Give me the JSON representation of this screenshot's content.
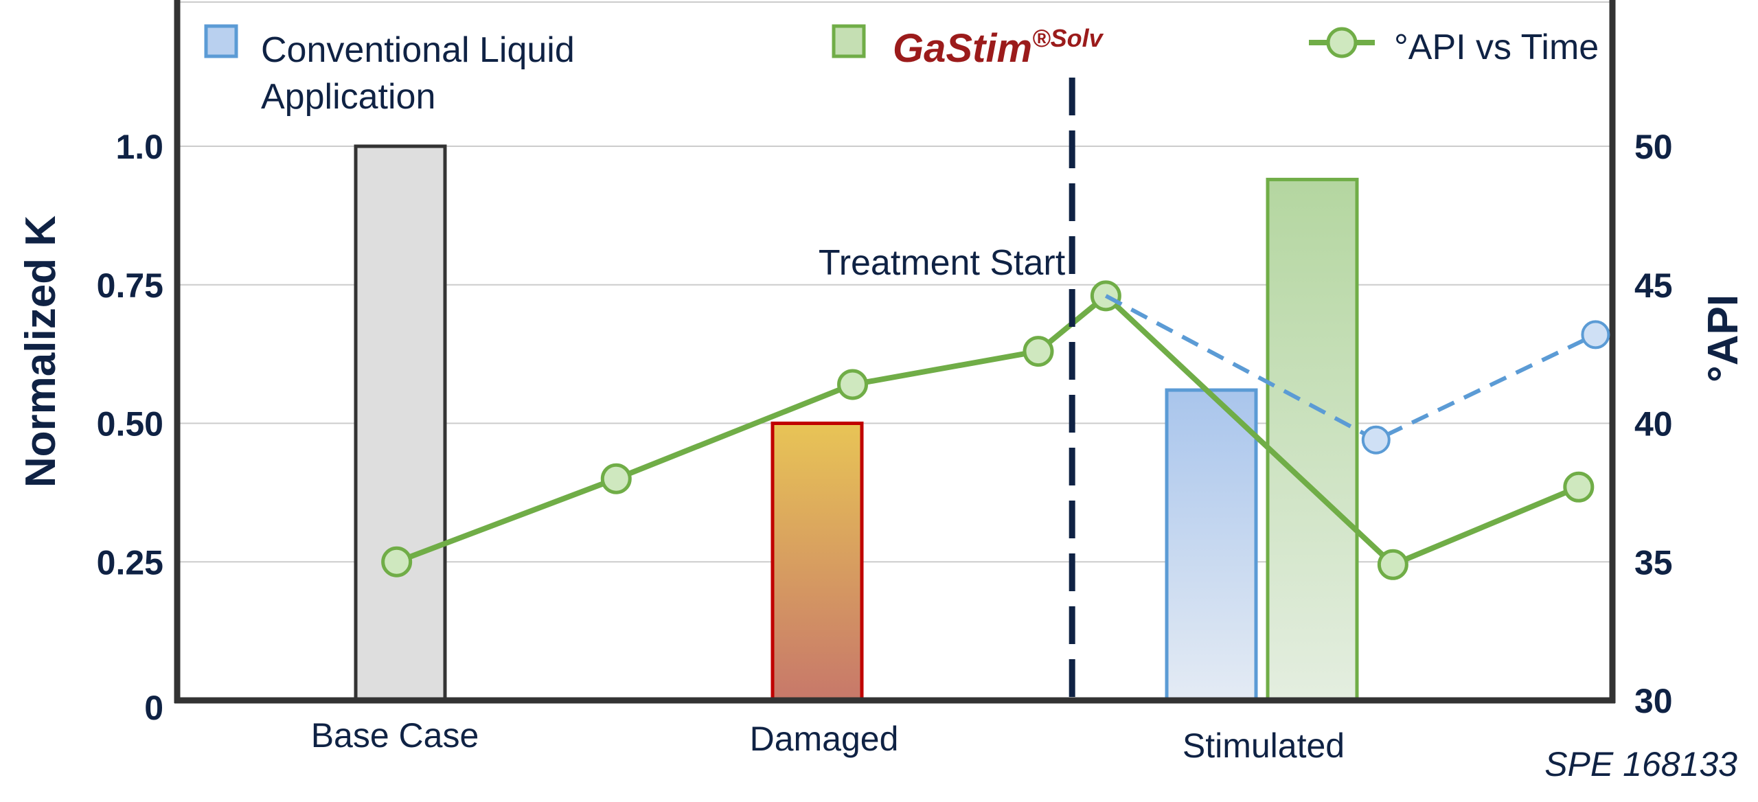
{
  "chart_data": {
    "type": "bar",
    "categories": [
      "Base Case",
      "Damaged",
      "Stimulated"
    ],
    "ylabel": "Normalized  K",
    "y2label": "°API",
    "ylim": [
      0,
      1.0
    ],
    "y2lim": [
      30,
      50
    ],
    "yticks": [
      "0",
      "0.25",
      "0.50",
      "0.75",
      "1.0"
    ],
    "y2ticks": [
      "30",
      "35",
      "40",
      "45",
      "50"
    ],
    "grid": true,
    "bars": [
      {
        "category": "Base Case",
        "value": 1.0,
        "style": "base"
      },
      {
        "category": "Damaged",
        "value": 0.5,
        "style": "damaged"
      },
      {
        "category": "Stimulated",
        "value": 0.56,
        "style": "conventional"
      },
      {
        "category": "Stimulated",
        "value": 0.94,
        "style": "gastim"
      }
    ],
    "series": [
      {
        "name": "°API vs Time",
        "kind": "line",
        "x": [
          0.65,
          1.3,
          2.0,
          2.55,
          2.75,
          3.6,
          4.15
        ],
        "values": [
          35.0,
          38.0,
          41.4,
          42.6,
          44.6,
          34.9,
          37.7
        ]
      },
      {
        "kind": "dashed",
        "x": [
          2.75,
          3.55,
          4.2
        ],
        "values": [
          44.6,
          39.4,
          43.2
        ]
      }
    ],
    "x_extent": [
      0,
      4.25
    ],
    "legend": {
      "position": "top",
      "items": [
        {
          "label": "Conventional Liquid",
          "label2": "Application",
          "color": "#5b9bd5"
        },
        {
          "label": "GaStim",
          "sup": "®Solv",
          "color": "#70ad47"
        },
        {
          "label": "°API vs Time",
          "color": "#70ad47"
        }
      ]
    },
    "annotations": [
      {
        "text": "Treatment Start",
        "x": 2.65
      }
    ],
    "source": "SPE 168133"
  },
  "colors": {
    "navy": "#0f2244",
    "green": "#70ad47",
    "blue": "#5b9bd5",
    "damaged_edge": "#c00000",
    "base_fill": "#dedede",
    "base_edge": "#333333",
    "grid": "#cccccc"
  }
}
